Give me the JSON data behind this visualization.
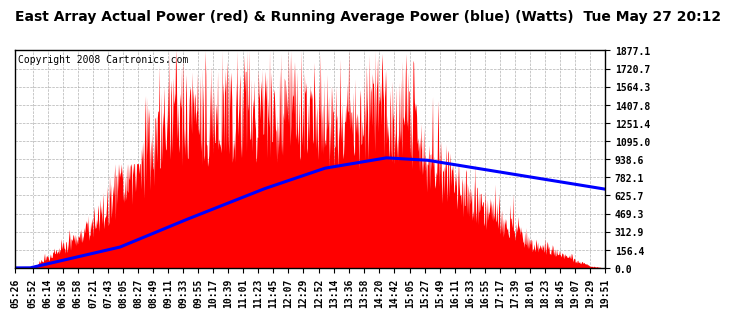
{
  "title": "East Array Actual Power (red) & Running Average Power (blue) (Watts)  Tue May 27 20:12",
  "copyright": "Copyright 2008 Cartronics.com",
  "background_color": "#ffffff",
  "plot_bg_color": "#ffffff",
  "grid_color": "#aaaaaa",
  "ytick_labels": [
    "0.0",
    "156.4",
    "312.9",
    "469.3",
    "625.7",
    "782.1",
    "938.6",
    "1095.0",
    "1251.4",
    "1407.8",
    "1564.3",
    "1720.7",
    "1877.1"
  ],
  "ytick_values": [
    0.0,
    156.4,
    312.9,
    469.3,
    625.7,
    782.1,
    938.6,
    1095.0,
    1251.4,
    1407.8,
    1564.3,
    1720.7,
    1877.1
  ],
  "ymax": 1877.1,
  "xtick_labels": [
    "05:26",
    "05:52",
    "06:14",
    "06:36",
    "06:58",
    "07:21",
    "07:43",
    "08:05",
    "08:27",
    "08:49",
    "09:11",
    "09:33",
    "09:55",
    "10:17",
    "10:39",
    "11:01",
    "11:23",
    "11:45",
    "12:07",
    "12:29",
    "12:52",
    "13:14",
    "13:36",
    "13:58",
    "14:20",
    "14:42",
    "15:05",
    "15:27",
    "15:49",
    "16:11",
    "16:33",
    "16:55",
    "17:17",
    "17:39",
    "18:01",
    "18:23",
    "18:45",
    "19:07",
    "19:29",
    "19:51"
  ],
  "fill_color": "#ff0000",
  "line_color": "#0000ff",
  "title_fontsize": 10,
  "copyright_fontsize": 7,
  "tick_fontsize": 7,
  "line_width": 2.2
}
